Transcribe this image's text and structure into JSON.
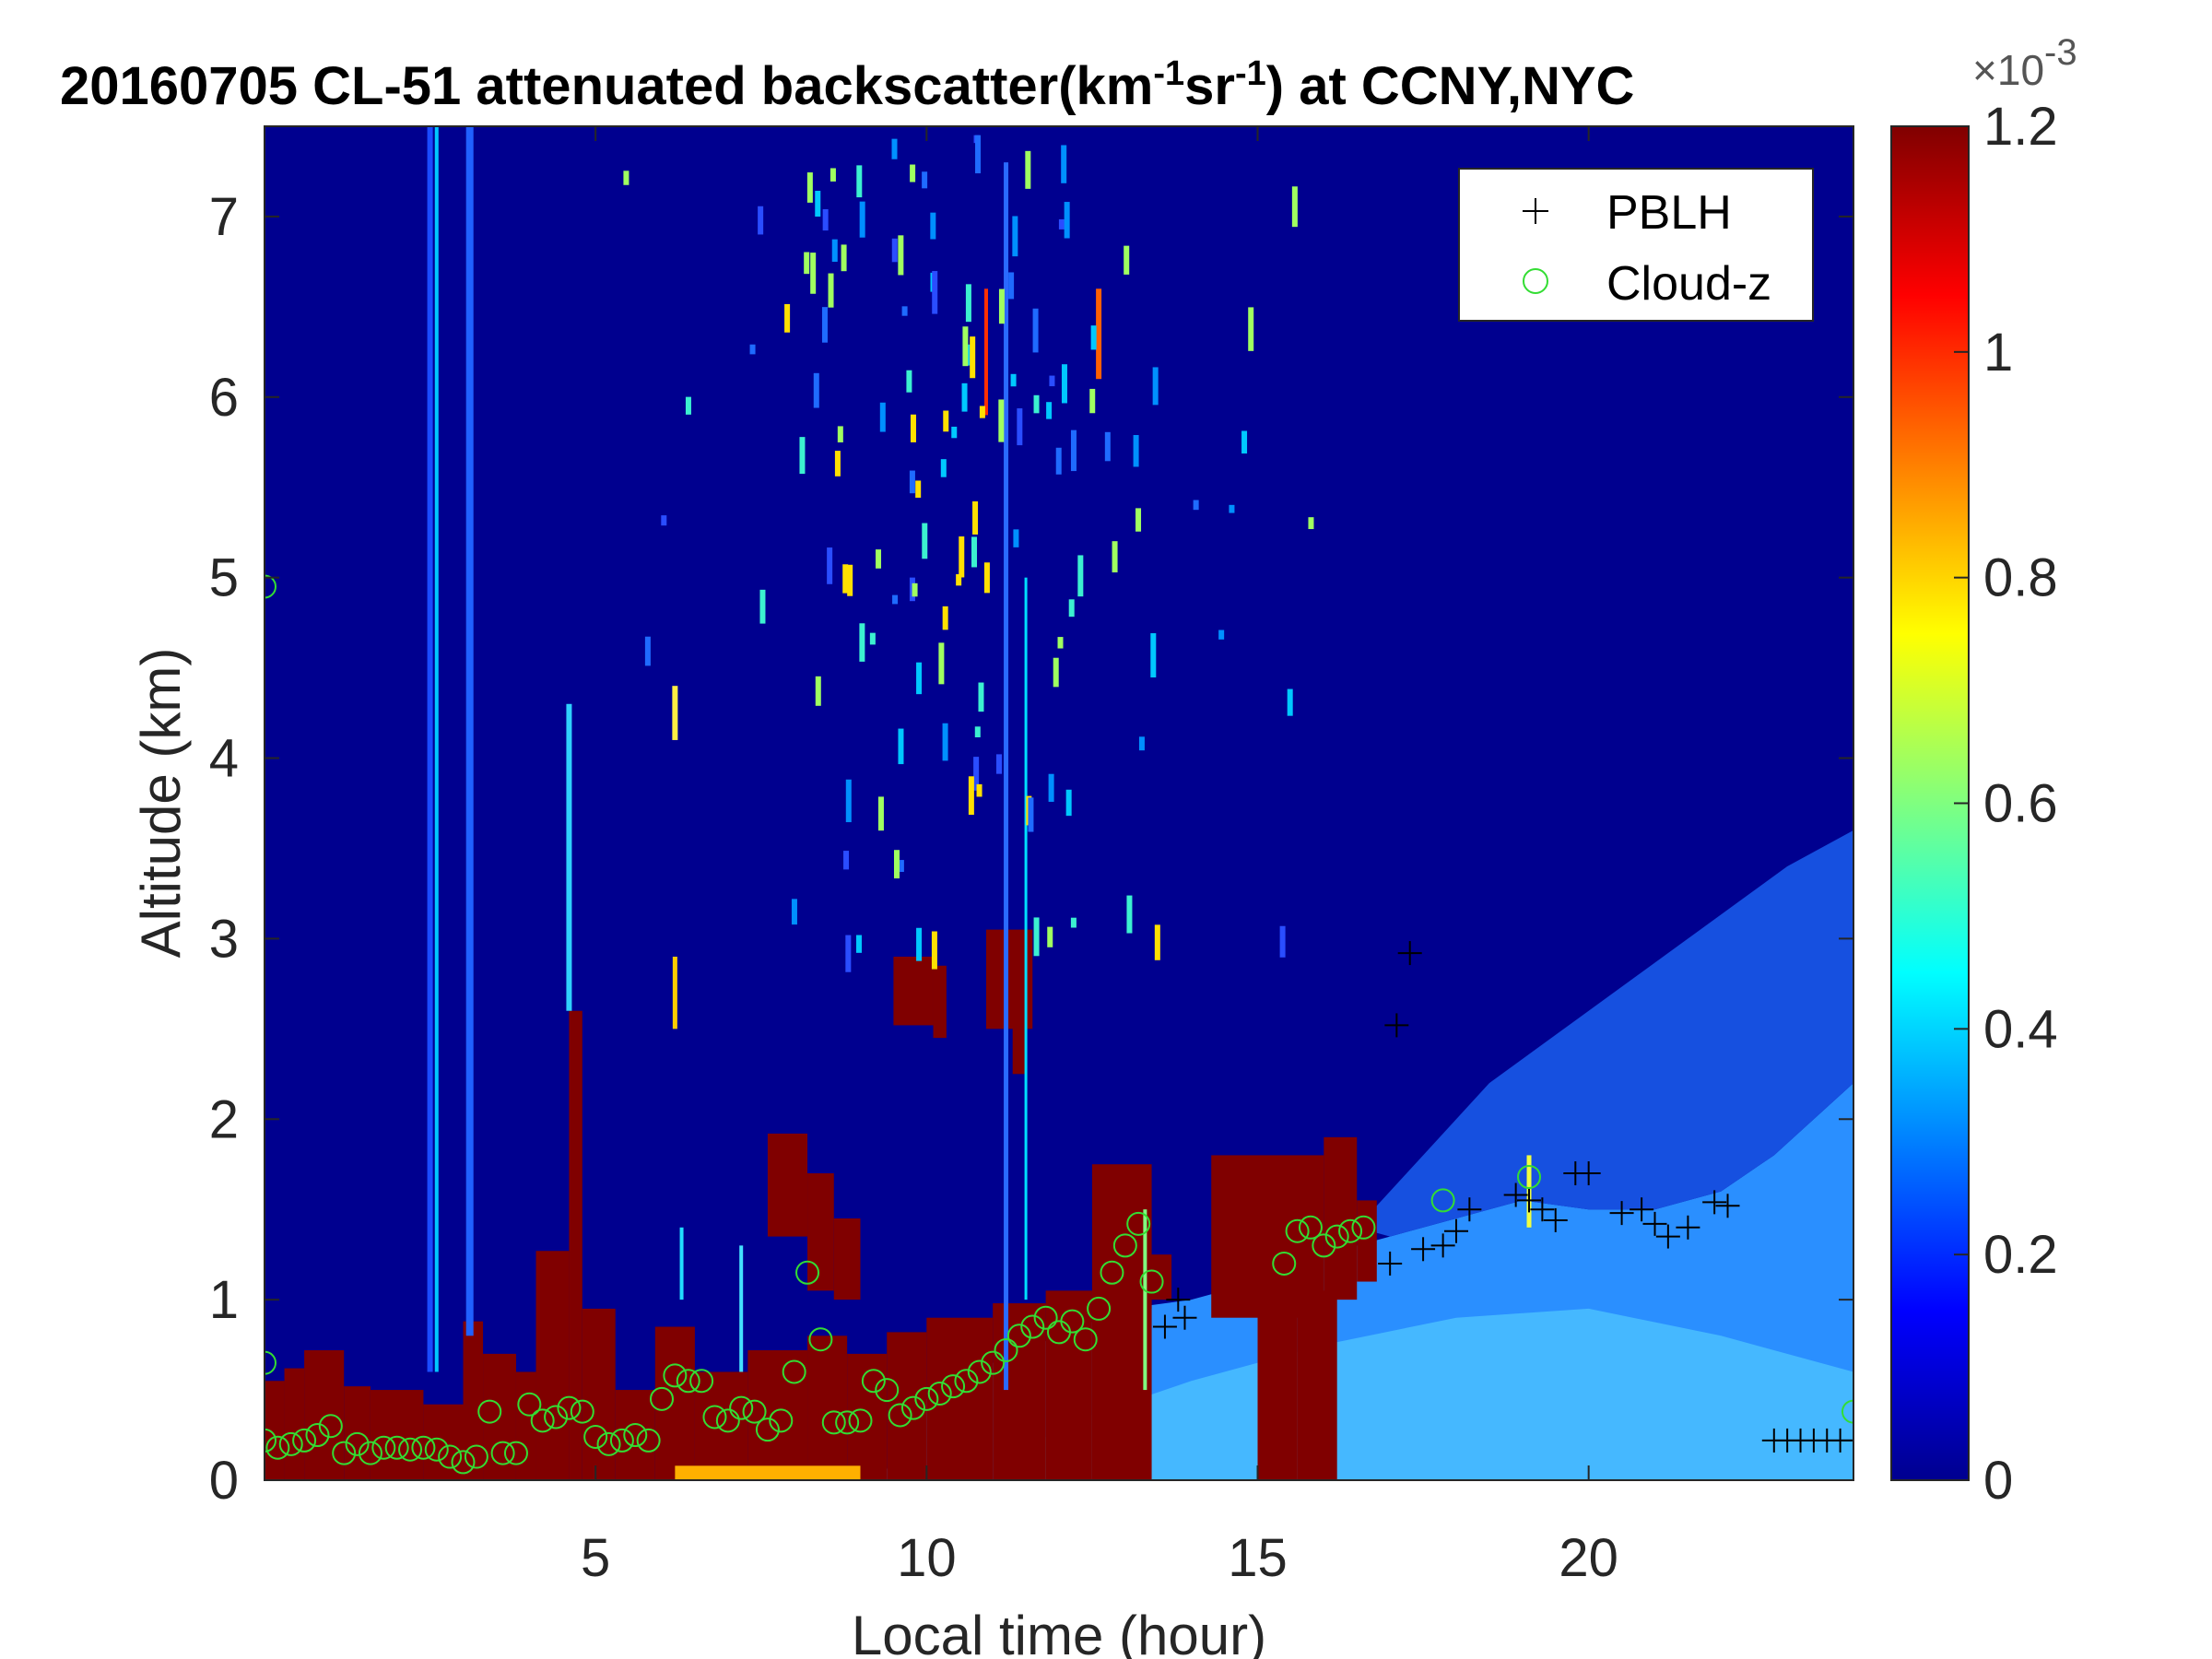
{
  "chart_data": {
    "type": "heatmap",
    "title_parts": {
      "prefix": "20160705  CL-51 attenuated backscatter(km",
      "sup1": "-1",
      "mid": "sr",
      "sup2": "-1",
      "suffix": ") at CCNY,NYC"
    },
    "xlabel": "Local time (hour)",
    "ylabel": "Altitude (km)",
    "xlim": [
      0,
      24
    ],
    "ylim": [
      0,
      7.5
    ],
    "xticks": [
      5,
      10,
      15,
      20
    ],
    "yticks": [
      0,
      1,
      2,
      3,
      4,
      5,
      6,
      7
    ],
    "colorbar": {
      "label_exponent": "×10",
      "exponent_sup": "-3",
      "range": [
        0,
        1.2
      ],
      "ticks": [
        0,
        0.2,
        0.4,
        0.6,
        0.8,
        1,
        1.2
      ],
      "tick_labels": [
        "0",
        "0.2",
        "0.4",
        "0.6",
        "0.8",
        "1",
        "1.2"
      ]
    },
    "legend": {
      "position": "top-right",
      "entries": [
        {
          "name": "PBLH",
          "marker": "+",
          "color": "#000000"
        },
        {
          "name": "Cloud-z",
          "marker": "o",
          "color": "#33dd33"
        }
      ]
    },
    "colors": {
      "low": "#00008f",
      "high": "#800000"
    },
    "series": [
      {
        "name": "PBLH",
        "marker": "+",
        "points": [
          [
            13.6,
            0.85
          ],
          [
            13.8,
            1.0
          ],
          [
            13.9,
            0.9
          ],
          [
            17.0,
            1.2
          ],
          [
            17.1,
            2.52
          ],
          [
            17.3,
            2.92
          ],
          [
            17.5,
            1.28
          ],
          [
            17.8,
            1.3
          ],
          [
            18.0,
            1.38
          ],
          [
            18.2,
            1.5
          ],
          [
            18.9,
            1.58
          ],
          [
            19.1,
            1.55
          ],
          [
            19.3,
            1.5
          ],
          [
            19.5,
            1.44
          ],
          [
            19.8,
            1.7
          ],
          [
            20.0,
            1.7
          ],
          [
            20.5,
            1.48
          ],
          [
            20.8,
            1.5
          ],
          [
            21.0,
            1.42
          ],
          [
            21.2,
            1.35
          ],
          [
            21.5,
            1.4
          ],
          [
            21.9,
            1.54
          ],
          [
            22.1,
            1.52
          ],
          [
            22.8,
            0.22
          ],
          [
            23.0,
            0.22
          ],
          [
            23.2,
            0.22
          ],
          [
            23.4,
            0.22
          ],
          [
            23.6,
            0.22
          ],
          [
            23.8,
            0.22
          ],
          [
            24.0,
            0.22
          ]
        ]
      },
      {
        "name": "Cloud-z",
        "marker": "o",
        "points": [
          [
            0.0,
            0.22
          ],
          [
            0.2,
            0.18
          ],
          [
            0.4,
            0.2
          ],
          [
            0.6,
            0.22
          ],
          [
            0.8,
            0.25
          ],
          [
            1.0,
            0.3
          ],
          [
            1.2,
            0.15
          ],
          [
            1.4,
            0.2
          ],
          [
            1.6,
            0.15
          ],
          [
            1.8,
            0.18
          ],
          [
            2.0,
            0.18
          ],
          [
            2.2,
            0.17
          ],
          [
            2.4,
            0.18
          ],
          [
            2.6,
            0.17
          ],
          [
            2.8,
            0.13
          ],
          [
            3.0,
            0.1
          ],
          [
            3.2,
            0.13
          ],
          [
            3.4,
            0.38
          ],
          [
            3.6,
            0.15
          ],
          [
            3.8,
            0.15
          ],
          [
            4.0,
            0.42
          ],
          [
            4.2,
            0.33
          ],
          [
            4.4,
            0.35
          ],
          [
            4.6,
            0.4
          ],
          [
            4.8,
            0.38
          ],
          [
            5.0,
            0.24
          ],
          [
            5.2,
            0.2
          ],
          [
            5.4,
            0.22
          ],
          [
            5.6,
            0.25
          ],
          [
            5.8,
            0.22
          ],
          [
            6.0,
            0.45
          ],
          [
            6.2,
            0.58
          ],
          [
            6.4,
            0.55
          ],
          [
            6.6,
            0.55
          ],
          [
            6.8,
            0.35
          ],
          [
            7.0,
            0.33
          ],
          [
            7.2,
            0.4
          ],
          [
            7.4,
            0.38
          ],
          [
            7.6,
            0.28
          ],
          [
            7.8,
            0.33
          ],
          [
            8.0,
            0.6
          ],
          [
            8.2,
            1.15
          ],
          [
            8.4,
            0.78
          ],
          [
            8.6,
            0.32
          ],
          [
            8.8,
            0.32
          ],
          [
            9.0,
            0.33
          ],
          [
            9.2,
            0.55
          ],
          [
            9.4,
            0.5
          ],
          [
            9.6,
            0.36
          ],
          [
            9.8,
            0.4
          ],
          [
            10.0,
            0.45
          ],
          [
            10.2,
            0.48
          ],
          [
            10.4,
            0.52
          ],
          [
            10.6,
            0.55
          ],
          [
            10.8,
            0.6
          ],
          [
            11.0,
            0.65
          ],
          [
            11.2,
            0.72
          ],
          [
            11.4,
            0.8
          ],
          [
            11.6,
            0.85
          ],
          [
            11.8,
            0.9
          ],
          [
            12.0,
            0.82
          ],
          [
            12.2,
            0.88
          ],
          [
            12.4,
            0.78
          ],
          [
            12.6,
            0.95
          ],
          [
            12.8,
            1.15
          ],
          [
            13.0,
            1.3
          ],
          [
            13.2,
            1.42
          ],
          [
            13.4,
            1.1
          ],
          [
            15.4,
            1.2
          ],
          [
            15.6,
            1.38
          ],
          [
            15.8,
            1.4
          ],
          [
            16.0,
            1.3
          ],
          [
            16.2,
            1.35
          ],
          [
            16.4,
            1.38
          ],
          [
            16.6,
            1.4
          ],
          [
            17.8,
            1.55
          ],
          [
            19.1,
            1.68
          ],
          [
            24.0,
            0.38
          ],
          [
            0.0,
            4.95
          ],
          [
            0.0,
            0.65
          ]
        ]
      }
    ]
  }
}
